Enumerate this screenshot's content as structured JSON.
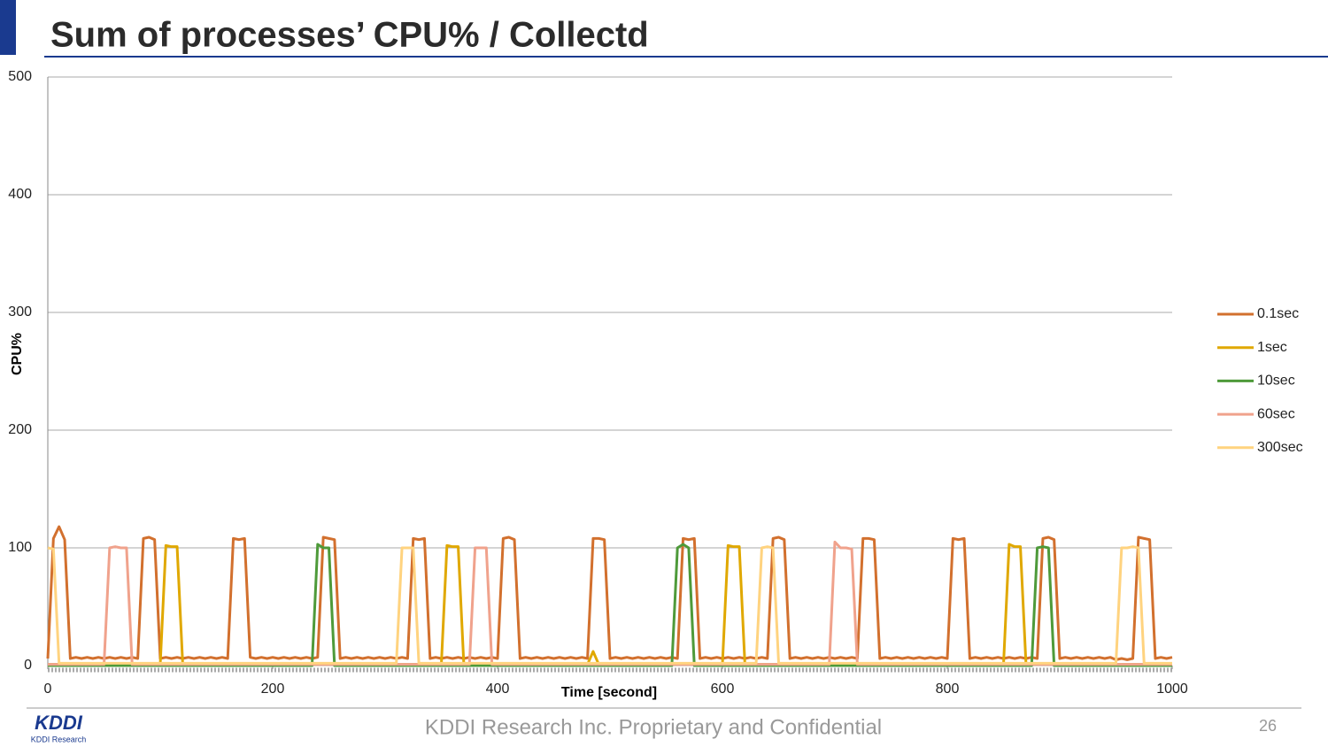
{
  "slide": {
    "title": "Sum of processes’ CPU% / Collectd",
    "footer_text": "KDDI Research Inc. Proprietary and Confidential",
    "page_number": "26",
    "logo_text": "KDDI",
    "logo_subtext": "KDDI Research"
  },
  "chart_data": {
    "type": "line",
    "y_label": "CPU%",
    "x_label": "Time [second]",
    "xlim": [
      0,
      1000
    ],
    "xticks": [
      0,
      200,
      400,
      600,
      800,
      1000
    ],
    "ylim": [
      0,
      500
    ],
    "yticks": [
      0,
      100,
      200,
      300,
      400,
      500
    ],
    "grid": true,
    "legend": "right",
    "x": [
      0,
      5,
      10,
      15,
      20,
      25,
      30,
      35,
      40,
      45,
      50,
      55,
      60,
      65,
      70,
      75,
      80,
      85,
      90,
      95,
      100,
      105,
      110,
      115,
      120,
      125,
      130,
      135,
      140,
      145,
      150,
      155,
      160,
      165,
      170,
      175,
      180,
      185,
      190,
      195,
      200,
      205,
      210,
      215,
      220,
      225,
      230,
      235,
      240,
      245,
      250,
      255,
      260,
      265,
      270,
      275,
      280,
      285,
      290,
      295,
      300,
      305,
      310,
      315,
      320,
      325,
      330,
      335,
      340,
      345,
      350,
      355,
      360,
      365,
      370,
      375,
      380,
      385,
      390,
      395,
      400,
      405,
      410,
      415,
      420,
      425,
      430,
      435,
      440,
      445,
      450,
      455,
      460,
      465,
      470,
      475,
      480,
      485,
      490,
      495,
      500,
      505,
      510,
      515,
      520,
      525,
      530,
      535,
      540,
      545,
      550,
      555,
      560,
      565,
      570,
      575,
      580,
      585,
      590,
      595,
      600,
      605,
      610,
      615,
      620,
      625,
      630,
      635,
      640,
      645,
      650,
      655,
      660,
      665,
      670,
      675,
      680,
      685,
      690,
      695,
      700,
      705,
      710,
      715,
      720,
      725,
      730,
      735,
      740,
      745,
      750,
      755,
      760,
      765,
      770,
      775,
      780,
      785,
      790,
      795,
      800,
      805,
      810,
      815,
      820,
      825,
      830,
      835,
      840,
      845,
      850,
      855,
      860,
      865,
      870,
      875,
      880,
      885,
      890,
      895,
      900,
      905,
      910,
      915,
      920,
      925,
      930,
      935,
      940,
      945,
      950,
      955,
      960,
      965,
      970,
      975,
      980,
      985,
      990,
      995,
      1000
    ],
    "series": [
      {
        "name": "0.1sec",
        "color": "#d2702e",
        "values": [
          6,
          108,
          118,
          107,
          6,
          7,
          6,
          7,
          6,
          7,
          6,
          7,
          6,
          7,
          6,
          7,
          6,
          108,
          109,
          107,
          6,
          7,
          6,
          7,
          6,
          7,
          6,
          7,
          6,
          7,
          6,
          7,
          6,
          108,
          107,
          108,
          7,
          6,
          7,
          6,
          7,
          6,
          7,
          6,
          7,
          6,
          7,
          6,
          7,
          109,
          108,
          107,
          6,
          7,
          6,
          7,
          6,
          7,
          6,
          7,
          6,
          7,
          6,
          7,
          6,
          108,
          107,
          108,
          6,
          7,
          6,
          7,
          6,
          7,
          6,
          7,
          6,
          7,
          6,
          7,
          6,
          108,
          109,
          107,
          6,
          7,
          6,
          7,
          6,
          7,
          6,
          7,
          6,
          7,
          6,
          7,
          6,
          108,
          108,
          107,
          6,
          7,
          6,
          7,
          6,
          7,
          6,
          7,
          6,
          7,
          6,
          7,
          6,
          108,
          107,
          108,
          6,
          7,
          6,
          7,
          6,
          7,
          6,
          7,
          6,
          7,
          6,
          7,
          6,
          108,
          109,
          107,
          6,
          7,
          6,
          7,
          6,
          7,
          6,
          7,
          6,
          7,
          6,
          7,
          6,
          108,
          108,
          107,
          6,
          7,
          6,
          7,
          6,
          7,
          6,
          7,
          6,
          7,
          6,
          7,
          6,
          108,
          107,
          108,
          6,
          7,
          6,
          7,
          6,
          7,
          6,
          7,
          6,
          7,
          6,
          7,
          6,
          108,
          109,
          107,
          6,
          7,
          6,
          7,
          6,
          7,
          6,
          7,
          6,
          7,
          5,
          6,
          5,
          6,
          109,
          108,
          107,
          6,
          7,
          6,
          7
        ]
      },
      {
        "name": "1sec",
        "color": "#e0a800",
        "values": [
          1,
          1,
          1,
          1,
          1,
          1,
          1,
          1,
          1,
          1,
          1,
          1,
          1,
          1,
          1,
          1,
          1,
          1,
          1,
          1,
          1,
          102,
          101,
          101,
          1,
          1,
          1,
          1,
          1,
          1,
          1,
          1,
          1,
          1,
          1,
          1,
          1,
          1,
          1,
          1,
          1,
          1,
          1,
          1,
          1,
          1,
          1,
          1,
          1,
          1,
          1,
          1,
          1,
          1,
          1,
          1,
          1,
          1,
          1,
          1,
          1,
          1,
          1,
          1,
          1,
          1,
          1,
          1,
          1,
          1,
          1,
          102,
          101,
          101,
          1,
          1,
          1,
          1,
          1,
          1,
          1,
          1,
          1,
          1,
          1,
          1,
          1,
          1,
          1,
          1,
          1,
          1,
          1,
          1,
          1,
          1,
          1,
          12,
          1,
          1,
          1,
          1,
          1,
          1,
          1,
          1,
          1,
          1,
          1,
          1,
          1,
          1,
          1,
          1,
          1,
          1,
          1,
          1,
          1,
          1,
          1,
          102,
          101,
          101,
          1,
          1,
          1,
          1,
          1,
          1,
          1,
          1,
          1,
          1,
          1,
          1,
          1,
          1,
          1,
          1,
          1,
          1,
          1,
          1,
          1,
          1,
          1,
          1,
          1,
          1,
          1,
          1,
          1,
          1,
          1,
          1,
          1,
          1,
          1,
          1,
          1,
          1,
          1,
          1,
          1,
          1,
          1,
          1,
          1,
          1,
          1,
          103,
          101,
          101,
          1,
          1,
          1,
          1,
          1,
          1,
          1,
          1,
          1,
          1,
          1,
          1,
          1,
          1,
          1,
          1,
          1,
          1,
          1,
          1,
          1,
          1,
          1,
          1,
          1,
          1,
          1
        ]
      },
      {
        "name": "10sec",
        "color": "#4e9a3a",
        "values": [
          0,
          0,
          0,
          0,
          0,
          0,
          0,
          0,
          0,
          0,
          0,
          0,
          0,
          0,
          0,
          0,
          0,
          0,
          0,
          0,
          0,
          0,
          0,
          0,
          0,
          0,
          0,
          0,
          0,
          0,
          0,
          0,
          0,
          0,
          0,
          0,
          0,
          0,
          0,
          0,
          0,
          0,
          0,
          0,
          0,
          0,
          0,
          0,
          103,
          100,
          100,
          0,
          0,
          0,
          0,
          0,
          0,
          0,
          0,
          0,
          0,
          0,
          0,
          0,
          0,
          0,
          0,
          0,
          0,
          0,
          0,
          0,
          0,
          0,
          0,
          0,
          0,
          0,
          0,
          0,
          0,
          0,
          0,
          0,
          0,
          0,
          0,
          0,
          0,
          0,
          0,
          0,
          0,
          0,
          0,
          0,
          0,
          0,
          0,
          0,
          0,
          0,
          0,
          0,
          0,
          0,
          0,
          0,
          0,
          0,
          0,
          0,
          100,
          103,
          100,
          0,
          0,
          0,
          0,
          0,
          0,
          0,
          0,
          0,
          0,
          0,
          0,
          0,
          0,
          0,
          0,
          0,
          0,
          0,
          0,
          0,
          0,
          0,
          0,
          0,
          0,
          0,
          0,
          0,
          0,
          0,
          0,
          0,
          0,
          0,
          0,
          0,
          0,
          0,
          0,
          0,
          0,
          0,
          0,
          0,
          0,
          0,
          0,
          0,
          0,
          0,
          0,
          0,
          0,
          0,
          0,
          0,
          0,
          0,
          0,
          0,
          100,
          101,
          100,
          0,
          0,
          0,
          0,
          0,
          0,
          0,
          0,
          0,
          0,
          0,
          0,
          0,
          0,
          0,
          0,
          0,
          0,
          0,
          0,
          0,
          0
        ]
      },
      {
        "name": "60sec",
        "color": "#f0a28c",
        "values": [
          1,
          1,
          1,
          1,
          1,
          1,
          1,
          1,
          1,
          1,
          1,
          100,
          101,
          100,
          100,
          1,
          1,
          1,
          1,
          1,
          1,
          1,
          1,
          1,
          1,
          1,
          1,
          1,
          1,
          1,
          1,
          1,
          1,
          1,
          1,
          1,
          1,
          1,
          1,
          1,
          1,
          1,
          1,
          1,
          1,
          1,
          1,
          1,
          1,
          1,
          1,
          1,
          1,
          1,
          1,
          1,
          1,
          1,
          1,
          1,
          1,
          1,
          1,
          1,
          1,
          1,
          1,
          1,
          1,
          1,
          1,
          1,
          1,
          1,
          1,
          1,
          100,
          100,
          100,
          1,
          1,
          1,
          1,
          1,
          1,
          1,
          1,
          1,
          1,
          1,
          1,
          1,
          1,
          1,
          1,
          1,
          1,
          1,
          1,
          1,
          1,
          1,
          1,
          1,
          1,
          1,
          1,
          1,
          1,
          1,
          1,
          1,
          1,
          1,
          1,
          1,
          1,
          1,
          1,
          1,
          1,
          1,
          1,
          1,
          1,
          1,
          1,
          1,
          1,
          1,
          1,
          1,
          1,
          1,
          1,
          1,
          1,
          1,
          1,
          1,
          105,
          100,
          100,
          99,
          1,
          1,
          1,
          1,
          1,
          1,
          1,
          1,
          1,
          1,
          1,
          1,
          1,
          1,
          1,
          1,
          1,
          1,
          1,
          1,
          1,
          1,
          1,
          1,
          1,
          1,
          1,
          1,
          1,
          1,
          1,
          1,
          1,
          1,
          1,
          1,
          1,
          1,
          1,
          1,
          1,
          1,
          1,
          1,
          1,
          1,
          1,
          1,
          1,
          1,
          1,
          1,
          1,
          1,
          1,
          1,
          1
        ]
      },
      {
        "name": "300sec",
        "color": "#ffd37f",
        "values": [
          100,
          99,
          2,
          2,
          2,
          2,
          2,
          2,
          2,
          2,
          2,
          2,
          2,
          2,
          2,
          2,
          2,
          2,
          2,
          2,
          2,
          2,
          2,
          2,
          2,
          2,
          2,
          2,
          2,
          2,
          2,
          2,
          2,
          2,
          2,
          2,
          2,
          2,
          2,
          2,
          2,
          2,
          2,
          2,
          2,
          2,
          2,
          2,
          2,
          2,
          2,
          2,
          2,
          2,
          2,
          2,
          2,
          2,
          2,
          2,
          2,
          2,
          2,
          100,
          100,
          100,
          2,
          2,
          2,
          2,
          2,
          2,
          2,
          2,
          2,
          2,
          2,
          2,
          2,
          2,
          2,
          2,
          2,
          2,
          2,
          2,
          2,
          2,
          2,
          2,
          2,
          2,
          2,
          2,
          2,
          2,
          2,
          2,
          2,
          2,
          2,
          2,
          2,
          2,
          2,
          2,
          2,
          2,
          2,
          2,
          2,
          2,
          2,
          2,
          2,
          2,
          2,
          2,
          2,
          2,
          2,
          2,
          2,
          2,
          2,
          2,
          2,
          100,
          101,
          100,
          2,
          2,
          2,
          2,
          2,
          2,
          2,
          2,
          2,
          2,
          2,
          2,
          2,
          2,
          2,
          2,
          2,
          2,
          2,
          2,
          2,
          2,
          2,
          2,
          2,
          2,
          2,
          2,
          2,
          2,
          2,
          2,
          2,
          2,
          2,
          2,
          2,
          2,
          2,
          2,
          2,
          2,
          2,
          2,
          2,
          2,
          2,
          2,
          2,
          2,
          2,
          2,
          2,
          2,
          2,
          2,
          2,
          2,
          2,
          2,
          2,
          100,
          100,
          101,
          100,
          2,
          2,
          2,
          2,
          2,
          2
        ]
      }
    ]
  }
}
